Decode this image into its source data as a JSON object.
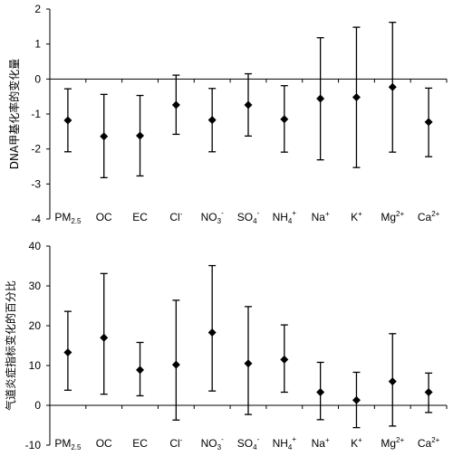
{
  "chart_data": [
    {
      "type": "scatter",
      "title": "",
      "xlabel": "",
      "ylabel": "DNA甲基化率的变化量",
      "ylim": [
        -4,
        2
      ],
      "yticks": [
        2,
        1,
        0,
        -1,
        -2,
        -3,
        -4
      ],
      "grid": false,
      "categories": [
        {
          "base": "PM",
          "sub": "2.5",
          "sup": ""
        },
        {
          "base": "OC",
          "sub": "",
          "sup": ""
        },
        {
          "base": "EC",
          "sub": "",
          "sup": ""
        },
        {
          "base": "Cl",
          "sub": "",
          "sup": "-"
        },
        {
          "base": "NO",
          "sub": "3",
          "sup": "-"
        },
        {
          "base": "SO",
          "sub": "4",
          "sup": "-"
        },
        {
          "base": "NH",
          "sub": "4",
          "sup": "+"
        },
        {
          "base": "Na",
          "sub": "",
          "sup": "+"
        },
        {
          "base": "K",
          "sub": "",
          "sup": "+"
        },
        {
          "base": "Mg",
          "sub": "",
          "sup": "2+"
        },
        {
          "base": "Ca",
          "sub": "",
          "sup": "2+"
        }
      ],
      "values": [
        -1.18,
        -1.64,
        -1.62,
        -0.74,
        -1.17,
        -0.74,
        -1.15,
        -0.56,
        -0.52,
        -0.23,
        -1.23
      ],
      "lower": [
        -2.08,
        -2.82,
        -2.77,
        -1.58,
        -2.08,
        -1.63,
        -2.09,
        -2.31,
        -2.53,
        -2.09,
        -2.22
      ],
      "upper": [
        -0.28,
        -0.44,
        -0.47,
        0.11,
        -0.27,
        0.15,
        -0.19,
        1.18,
        1.48,
        1.62,
        -0.26
      ]
    },
    {
      "type": "scatter",
      "title": "",
      "xlabel": "",
      "ylabel": "气道炎症指标变化的百分比",
      "ylim": [
        -10,
        40
      ],
      "yticks": [
        40,
        30,
        20,
        10,
        0,
        -10
      ],
      "grid": false,
      "categories": [
        {
          "base": "PM",
          "sub": "2.5",
          "sup": ""
        },
        {
          "base": "OC",
          "sub": "",
          "sup": ""
        },
        {
          "base": "EC",
          "sub": "",
          "sup": ""
        },
        {
          "base": "Cl",
          "sub": "",
          "sup": "-"
        },
        {
          "base": "NO",
          "sub": "3",
          "sup": "-"
        },
        {
          "base": "SO",
          "sub": "4",
          "sup": "-"
        },
        {
          "base": "NH",
          "sub": "4",
          "sup": "+"
        },
        {
          "base": "Na",
          "sub": "",
          "sup": "+"
        },
        {
          "base": "K",
          "sub": "",
          "sup": "+"
        },
        {
          "base": "Mg",
          "sub": "",
          "sup": "2+"
        },
        {
          "base": "Ca",
          "sub": "",
          "sup": "2+"
        }
      ],
      "values": [
        13.3,
        17.0,
        8.9,
        10.2,
        18.3,
        10.5,
        11.5,
        3.3,
        1.3,
        6.0,
        3.3
      ],
      "lower": [
        3.8,
        2.8,
        2.4,
        -3.7,
        3.6,
        -2.3,
        3.3,
        -3.6,
        -5.6,
        -5.2,
        -1.8
      ],
      "upper": [
        23.6,
        33.1,
        15.8,
        26.4,
        35.1,
        24.8,
        20.2,
        10.8,
        8.3,
        18.0,
        8.1
      ]
    }
  ]
}
